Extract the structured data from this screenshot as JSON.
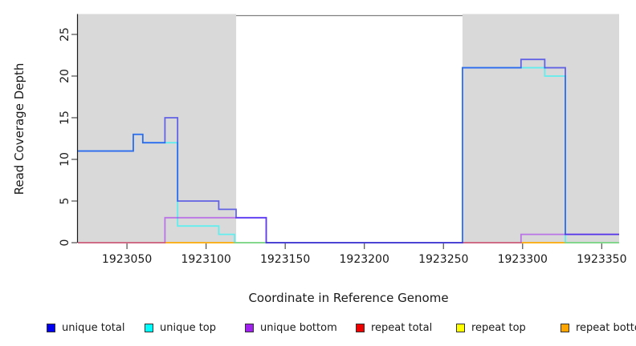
{
  "figure": {
    "background_color": "#ffffff",
    "shaded_band_color": "#d9d9d9",
    "top_border_color": "#808080",
    "axis_color": "#1a1a1a",
    "tick_color": "#4d4d4d"
  },
  "chart_data": {
    "type": "line",
    "step": true,
    "title": "",
    "xlabel": "Coordinate in Reference Genome",
    "ylabel": "Read Coverage Depth",
    "xlim": [
      1923019,
      1923361
    ],
    "ylim": [
      0,
      27.4
    ],
    "xticks": [
      1923050,
      1923100,
      1923150,
      1923200,
      1923250,
      1923300,
      1923350
    ],
    "yticks": [
      0,
      5,
      10,
      15,
      20,
      25
    ],
    "grid": false,
    "legend_position": "bottom",
    "shaded_regions": [
      {
        "x0": 1923019,
        "x1": 1923119
      },
      {
        "x0": 1923262,
        "x1": 1923361
      }
    ],
    "line_opacity": 0.55,
    "line_width": 1.8,
    "draw_order": [
      "repeat total",
      "repeat top",
      "repeat bottom",
      "unique top",
      "unique bottom",
      "unique total"
    ],
    "series": [
      {
        "name": "unique total",
        "color": "#0000EE",
        "steps": [
          [
            1923019,
            11
          ],
          [
            1923054,
            13
          ],
          [
            1923060,
            12
          ],
          [
            1923074,
            15
          ],
          [
            1923082,
            5
          ],
          [
            1923108,
            4
          ],
          [
            1923119,
            3
          ],
          [
            1923138,
            0
          ],
          [
            1923262,
            21
          ],
          [
            1923299,
            22
          ],
          [
            1923314,
            21
          ],
          [
            1923327,
            1
          ]
        ]
      },
      {
        "name": "unique top",
        "color": "#00FFFF",
        "steps": [
          [
            1923019,
            11
          ],
          [
            1923054,
            13
          ],
          [
            1923060,
            12
          ],
          [
            1923082,
            2
          ],
          [
            1923108,
            1
          ],
          [
            1923118,
            0
          ],
          [
            1923262,
            21
          ],
          [
            1923314,
            20
          ],
          [
            1923327,
            0
          ]
        ]
      },
      {
        "name": "unique bottom",
        "color": "#A020F0",
        "steps": [
          [
            1923019,
            0
          ],
          [
            1923074,
            3
          ],
          [
            1923138,
            0
          ],
          [
            1923299,
            1
          ]
        ]
      },
      {
        "name": "repeat total",
        "color": "#EE0000",
        "steps": [
          [
            1923019,
            0
          ]
        ]
      },
      {
        "name": "repeat top",
        "color": "#FFFF00",
        "steps": [
          [
            1923019,
            0
          ]
        ]
      },
      {
        "name": "repeat bottom",
        "color": "#FFA500",
        "steps": [
          [
            1923019,
            0
          ]
        ]
      }
    ]
  },
  "legend": {
    "items": [
      {
        "label": "unique total",
        "color": "#0000EE"
      },
      {
        "label": "unique top",
        "color": "#00FFFF"
      },
      {
        "label": "unique bottom",
        "color": "#A020F0"
      },
      {
        "label": "repeat total",
        "color": "#EE0000"
      },
      {
        "label": "repeat top",
        "color": "#FFFF00"
      },
      {
        "label": "repeat bottom",
        "color": "#FFA500"
      }
    ]
  }
}
